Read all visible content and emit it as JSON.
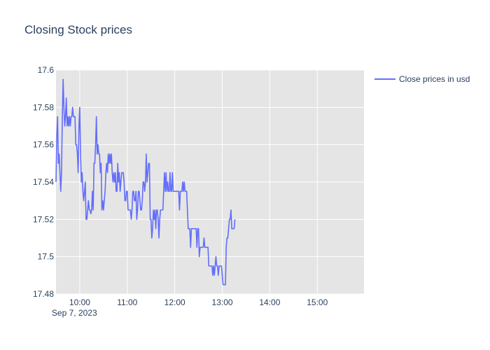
{
  "chart_data": {
    "type": "line",
    "title": "Closing Stock prices",
    "xlabel": "",
    "ylabel": "",
    "x_axis": {
      "type": "time",
      "range": [
        "09:30",
        "15:59"
      ],
      "ticks": [
        "10:00",
        "11:00",
        "12:00",
        "13:00",
        "14:00",
        "15:00"
      ],
      "date_label": "Sep 7, 2023"
    },
    "ylim": [
      17.48,
      17.6
    ],
    "y_ticks": [
      17.48,
      17.5,
      17.52,
      17.54,
      17.56,
      17.58,
      17.6
    ],
    "y_tick_labels": [
      "17.48",
      "17.5",
      "17.52",
      "17.54",
      "17.56",
      "17.58",
      "17.6"
    ],
    "grid": true,
    "legend_position": "top-right",
    "plot_background": "#e5e5e5",
    "series": [
      {
        "name": "Close prices in usd",
        "color": "#636efa",
        "points": [
          [
            "09:30",
            17.54
          ],
          [
            "09:31",
            17.565
          ],
          [
            "09:32",
            17.575
          ],
          [
            "09:33",
            17.55
          ],
          [
            "09:34",
            17.555
          ],
          [
            "09:35",
            17.545
          ],
          [
            "09:36",
            17.535
          ],
          [
            "09:37",
            17.545
          ],
          [
            "09:38",
            17.575
          ],
          [
            "09:39",
            17.595
          ],
          [
            "09:40",
            17.58
          ],
          [
            "09:41",
            17.57
          ],
          [
            "09:42",
            17.575
          ],
          [
            "09:43",
            17.585
          ],
          [
            "09:44",
            17.57
          ],
          [
            "09:45",
            17.575
          ],
          [
            "09:46",
            17.57
          ],
          [
            "09:47",
            17.575
          ],
          [
            "09:48",
            17.57
          ],
          [
            "09:49",
            17.575
          ],
          [
            "09:50",
            17.575
          ],
          [
            "09:51",
            17.58
          ],
          [
            "09:52",
            17.575
          ],
          [
            "09:53",
            17.575
          ],
          [
            "09:54",
            17.575
          ],
          [
            "09:55",
            17.56
          ],
          [
            "09:56",
            17.56
          ],
          [
            "09:57",
            17.555
          ],
          [
            "09:58",
            17.545
          ],
          [
            "09:59",
            17.57
          ],
          [
            "10:00",
            17.58
          ],
          [
            "10:01",
            17.555
          ],
          [
            "10:02",
            17.54
          ],
          [
            "10:03",
            17.545
          ],
          [
            "10:04",
            17.535
          ],
          [
            "10:05",
            17.53
          ],
          [
            "10:06",
            17.535
          ],
          [
            "10:07",
            17.54
          ],
          [
            "10:08",
            17.52
          ],
          [
            "10:09",
            17.52
          ],
          [
            "10:10",
            17.525
          ],
          [
            "10:11",
            17.53
          ],
          [
            "10:12",
            17.525
          ],
          [
            "10:13",
            17.525
          ],
          [
            "10:14",
            17.523
          ],
          [
            "10:15",
            17.525
          ],
          [
            "10:16",
            17.535
          ],
          [
            "10:17",
            17.525
          ],
          [
            "10:18",
            17.55
          ],
          [
            "10:19",
            17.55
          ],
          [
            "10:20",
            17.56
          ],
          [
            "10:21",
            17.575
          ],
          [
            "10:22",
            17.555
          ],
          [
            "10:23",
            17.56
          ],
          [
            "10:24",
            17.555
          ],
          [
            "10:25",
            17.555
          ],
          [
            "10:26",
            17.545
          ],
          [
            "10:27",
            17.55
          ],
          [
            "10:28",
            17.525
          ],
          [
            "10:29",
            17.53
          ],
          [
            "10:30",
            17.525
          ],
          [
            "10:31",
            17.53
          ],
          [
            "10:32",
            17.535
          ],
          [
            "10:33",
            17.545
          ],
          [
            "10:34",
            17.55
          ],
          [
            "10:35",
            17.545
          ],
          [
            "10:36",
            17.555
          ],
          [
            "10:37",
            17.55
          ],
          [
            "10:38",
            17.555
          ],
          [
            "10:39",
            17.55
          ],
          [
            "10:40",
            17.555
          ],
          [
            "10:41",
            17.545
          ],
          [
            "10:42",
            17.54
          ],
          [
            "10:43",
            17.545
          ],
          [
            "10:44",
            17.54
          ],
          [
            "10:45",
            17.545
          ],
          [
            "10:46",
            17.535
          ],
          [
            "10:47",
            17.535
          ],
          [
            "10:48",
            17.55
          ],
          [
            "10:49",
            17.54
          ],
          [
            "10:50",
            17.545
          ],
          [
            "10:51",
            17.535
          ],
          [
            "10:52",
            17.54
          ],
          [
            "10:53",
            17.545
          ],
          [
            "10:54",
            17.545
          ],
          [
            "10:55",
            17.545
          ],
          [
            "10:56",
            17.54
          ],
          [
            "10:57",
            17.53
          ],
          [
            "10:58",
            17.53
          ],
          [
            "10:59",
            17.535
          ],
          [
            "11:00",
            17.535
          ],
          [
            "11:01",
            17.525
          ],
          [
            "11:02",
            17.525
          ],
          [
            "11:03",
            17.525
          ],
          [
            "11:04",
            17.525
          ],
          [
            "11:05",
            17.52
          ],
          [
            "11:06",
            17.525
          ],
          [
            "11:07",
            17.535
          ],
          [
            "11:08",
            17.535
          ],
          [
            "11:09",
            17.53
          ],
          [
            "11:10",
            17.53
          ],
          [
            "11:11",
            17.535
          ],
          [
            "11:12",
            17.52
          ],
          [
            "11:13",
            17.525
          ],
          [
            "11:14",
            17.535
          ],
          [
            "11:15",
            17.535
          ],
          [
            "11:16",
            17.53
          ],
          [
            "11:17",
            17.525
          ],
          [
            "11:18",
            17.525
          ],
          [
            "11:19",
            17.53
          ],
          [
            "11:20",
            17.54
          ],
          [
            "11:21",
            17.54
          ],
          [
            "11:22",
            17.535
          ],
          [
            "11:23",
            17.54
          ],
          [
            "11:24",
            17.555
          ],
          [
            "11:25",
            17.54
          ],
          [
            "11:26",
            17.545
          ],
          [
            "11:27",
            17.55
          ],
          [
            "11:28",
            17.55
          ],
          [
            "11:29",
            17.52
          ],
          [
            "11:30",
            17.52
          ],
          [
            "11:31",
            17.51
          ],
          [
            "11:32",
            17.515
          ],
          [
            "11:33",
            17.525
          ],
          [
            "11:34",
            17.52
          ],
          [
            "11:35",
            17.525
          ],
          [
            "11:36",
            17.515
          ],
          [
            "11:37",
            17.525
          ],
          [
            "11:38",
            17.525
          ],
          [
            "11:39",
            17.52
          ],
          [
            "11:40",
            17.51
          ],
          [
            "11:41",
            17.52
          ],
          [
            "11:42",
            17.525
          ],
          [
            "11:43",
            17.525
          ],
          [
            "11:44",
            17.525
          ],
          [
            "11:45",
            17.525
          ],
          [
            "11:46",
            17.535
          ],
          [
            "11:47",
            17.545
          ],
          [
            "11:48",
            17.535
          ],
          [
            "11:49",
            17.545
          ],
          [
            "11:50",
            17.535
          ],
          [
            "11:51",
            17.54
          ],
          [
            "11:52",
            17.535
          ],
          [
            "11:53",
            17.535
          ],
          [
            "11:54",
            17.545
          ],
          [
            "11:55",
            17.535
          ],
          [
            "11:56",
            17.535
          ],
          [
            "11:57",
            17.545
          ],
          [
            "11:58",
            17.535
          ],
          [
            "11:59",
            17.535
          ],
          [
            "12:00",
            17.535
          ],
          [
            "12:01",
            17.535
          ],
          [
            "12:02",
            17.535
          ],
          [
            "12:03",
            17.535
          ],
          [
            "12:04",
            17.535
          ],
          [
            "12:05",
            17.535
          ],
          [
            "12:06",
            17.525
          ],
          [
            "12:07",
            17.535
          ],
          [
            "12:08",
            17.535
          ],
          [
            "12:09",
            17.535
          ],
          [
            "12:10",
            17.54
          ],
          [
            "12:11",
            17.535
          ],
          [
            "12:12",
            17.54
          ],
          [
            "12:13",
            17.535
          ],
          [
            "12:14",
            17.535
          ],
          [
            "12:15",
            17.535
          ],
          [
            "12:16",
            17.525
          ],
          [
            "12:17",
            17.515
          ],
          [
            "12:18",
            17.515
          ],
          [
            "12:19",
            17.515
          ],
          [
            "12:20",
            17.505
          ],
          [
            "12:21",
            17.515
          ],
          [
            "12:22",
            17.515
          ],
          [
            "12:23",
            17.515
          ],
          [
            "12:24",
            17.515
          ],
          [
            "12:25",
            17.515
          ],
          [
            "12:26",
            17.515
          ],
          [
            "12:27",
            17.515
          ],
          [
            "12:28",
            17.505
          ],
          [
            "12:29",
            17.515
          ],
          [
            "12:30",
            17.515
          ],
          [
            "12:31",
            17.5
          ],
          [
            "12:32",
            17.505
          ],
          [
            "12:33",
            17.505
          ],
          [
            "12:34",
            17.505
          ],
          [
            "12:35",
            17.505
          ],
          [
            "12:36",
            17.505
          ],
          [
            "12:37",
            17.51
          ],
          [
            "12:38",
            17.505
          ],
          [
            "12:39",
            17.505
          ],
          [
            "12:40",
            17.505
          ],
          [
            "12:41",
            17.505
          ],
          [
            "12:42",
            17.505
          ],
          [
            "12:43",
            17.495
          ],
          [
            "12:44",
            17.495
          ],
          [
            "12:45",
            17.495
          ],
          [
            "12:46",
            17.495
          ],
          [
            "12:47",
            17.495
          ],
          [
            "12:48",
            17.49
          ],
          [
            "12:49",
            17.495
          ],
          [
            "12:50",
            17.49
          ],
          [
            "12:51",
            17.495
          ],
          [
            "12:52",
            17.5
          ],
          [
            "12:53",
            17.495
          ],
          [
            "12:54",
            17.495
          ],
          [
            "12:55",
            17.49
          ],
          [
            "12:56",
            17.495
          ],
          [
            "12:57",
            17.495
          ],
          [
            "12:58",
            17.495
          ],
          [
            "12:59",
            17.495
          ],
          [
            "13:00",
            17.49
          ],
          [
            "13:01",
            17.485
          ],
          [
            "13:02",
            17.485
          ],
          [
            "13:03",
            17.485
          ],
          [
            "13:04",
            17.485
          ],
          [
            "13:05",
            17.505
          ],
          [
            "13:06",
            17.51
          ],
          [
            "13:07",
            17.51
          ],
          [
            "13:08",
            17.515
          ],
          [
            "13:09",
            17.52
          ],
          [
            "13:10",
            17.52
          ],
          [
            "13:11",
            17.525
          ],
          [
            "13:12",
            17.515
          ],
          [
            "13:13",
            17.515
          ],
          [
            "13:14",
            17.515
          ],
          [
            "13:15",
            17.515
          ],
          [
            "13:16",
            17.52
          ]
        ]
      }
    ]
  }
}
